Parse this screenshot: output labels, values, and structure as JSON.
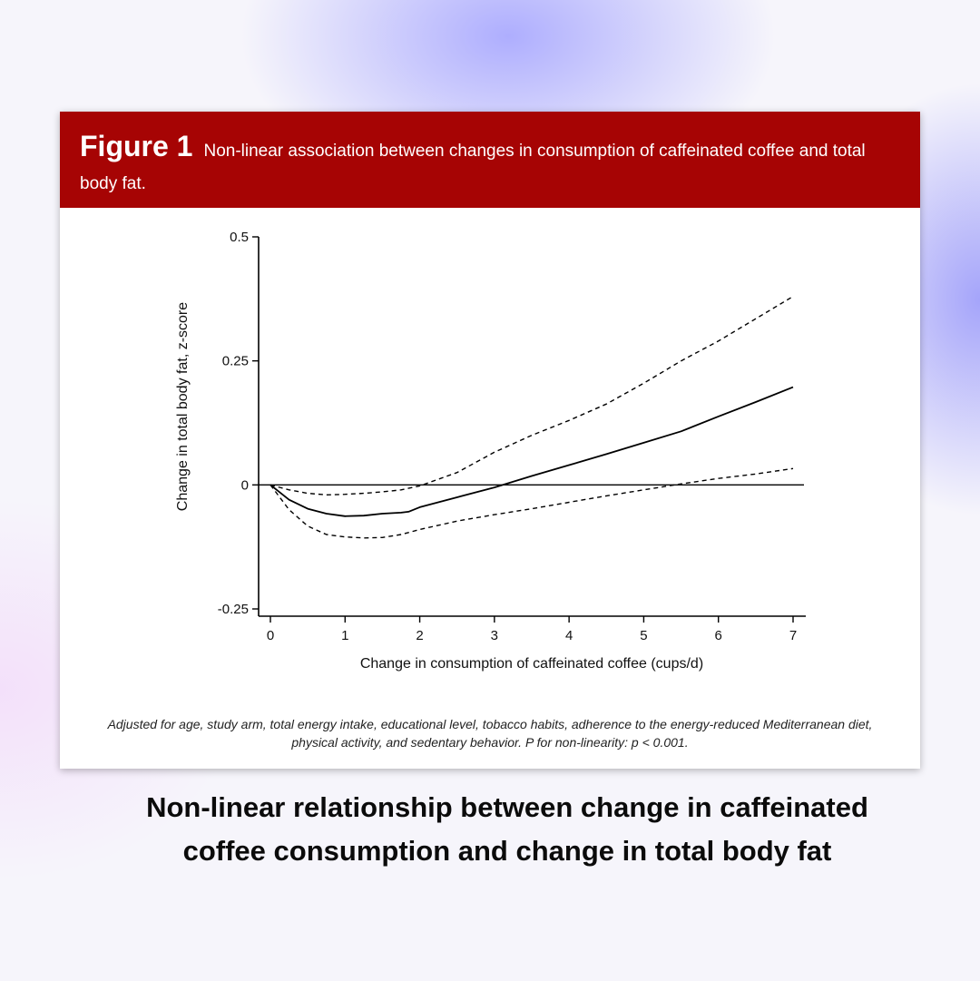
{
  "figure": {
    "label": "Figure 1",
    "title": "Non-linear association between changes in consumption of caffeinated coffee and total body fat.",
    "footnote": "Adjusted for age, study arm, total energy intake, educational level, tobacco habits, adherence to the energy-reduced Mediterranean diet, physical activity, and sedentary behavior. P for non-linearity: p < 0.001."
  },
  "caption": "Non-linear relationship between change in caffeinated coffee consumption and change in total body fat",
  "colors": {
    "header_bg": "#a60404",
    "line": "#000000"
  },
  "chart_data": {
    "type": "line",
    "xlabel": "Change in consumption of caffeinated coffee (cups/d)",
    "ylabel": "Change in total body fat, z-score",
    "xlim": [
      0,
      7
    ],
    "ylim": [
      -0.25,
      0.5
    ],
    "xticks": [
      0,
      1,
      2,
      3,
      4,
      5,
      6,
      7
    ],
    "yticks": [
      0.5,
      0.25,
      0,
      -0.25
    ],
    "ytick_labels": [
      "0.5",
      "0.25",
      "0",
      "-0.25"
    ],
    "reference_line_y": 0,
    "grid": false,
    "series": [
      {
        "style": "solid",
        "x": [
          0,
          0.25,
          0.5,
          0.75,
          1,
          1.25,
          1.5,
          1.75,
          1.85,
          2,
          2.5,
          3,
          3.5,
          4,
          4.5,
          5,
          5.5,
          6,
          6.5,
          7
        ],
        "y": [
          0,
          -0.03,
          -0.048,
          -0.058,
          -0.063,
          -0.062,
          -0.058,
          -0.056,
          -0.054,
          -0.045,
          -0.025,
          -0.005,
          0.018,
          0.04,
          0.062,
          0.085,
          0.108,
          0.138,
          0.167,
          0.197
        ]
      },
      {
        "style": "dashed",
        "x": [
          0,
          0.25,
          0.5,
          0.75,
          1,
          1.25,
          1.5,
          1.75,
          2,
          2.5,
          3,
          3.5,
          4,
          4.5,
          5,
          5.5,
          6,
          6.5,
          7
        ],
        "y": [
          0,
          -0.01,
          -0.017,
          -0.02,
          -0.019,
          -0.017,
          -0.014,
          -0.01,
          -0.002,
          0.025,
          0.066,
          0.1,
          0.13,
          0.163,
          0.205,
          0.25,
          0.29,
          0.335,
          0.38
        ]
      },
      {
        "style": "dashed",
        "x": [
          0,
          0.25,
          0.5,
          0.75,
          1,
          1.25,
          1.5,
          1.75,
          2,
          2.5,
          3,
          3.5,
          4,
          4.5,
          5,
          5.5,
          6,
          6.5,
          7
        ],
        "y": [
          0,
          -0.05,
          -0.083,
          -0.1,
          -0.105,
          -0.107,
          -0.106,
          -0.1,
          -0.09,
          -0.073,
          -0.06,
          -0.048,
          -0.035,
          -0.022,
          -0.01,
          0.002,
          0.013,
          0.022,
          0.033
        ]
      }
    ]
  }
}
